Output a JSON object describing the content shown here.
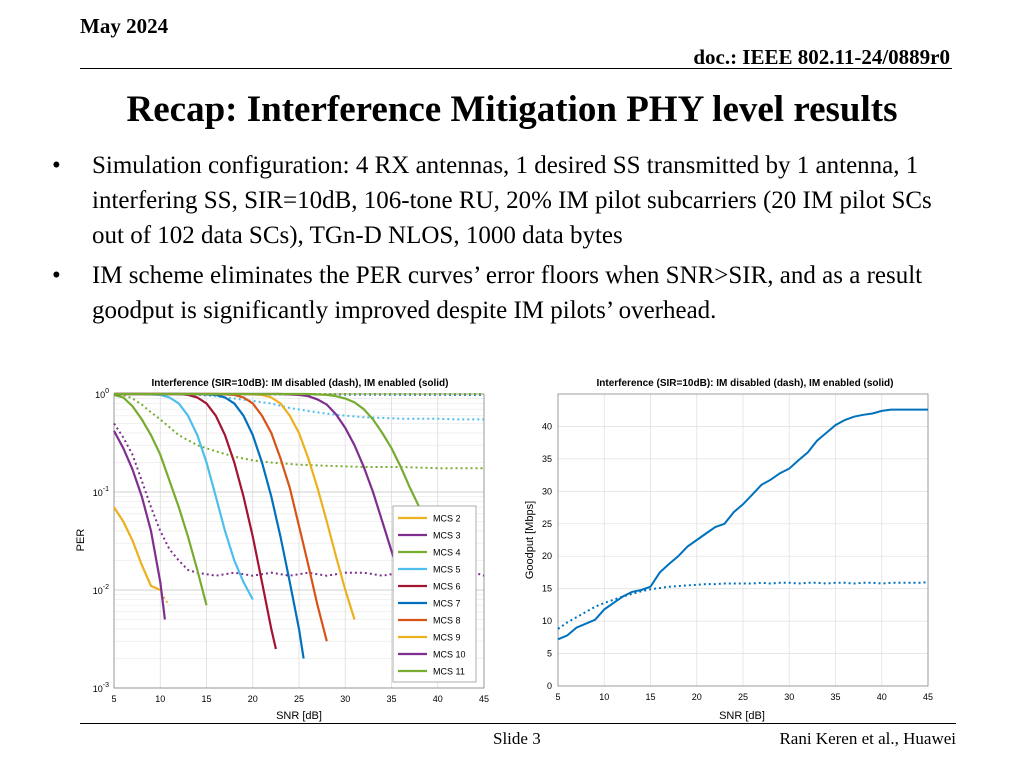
{
  "header": {
    "date": "May 2024",
    "doc": "doc.: IEEE 802.11-24/0889r0"
  },
  "title": "Recap: Interference Mitigation PHY level results",
  "bullets": [
    "Simulation configuration: 4 RX antennas, 1 desired SS transmitted by 1 antenna, 1 interfering SS, SIR=10dB, 106-tone RU, 20% IM pilot subcarriers (20 IM pilot SCs out of 102 data SCs), TGn-D NLOS, 1000 data bytes",
    "IM scheme eliminates the PER curves’ error floors when SNR>SIR, and as a result goodput is significantly improved despite IM pilots’ overhead."
  ],
  "footer": {
    "slide": "Slide 3",
    "author": "Rani Keren et al., Huawei"
  },
  "chart_data": [
    {
      "type": "line",
      "title": "Interference (SIR=10dB): IM disabled (dash), IM enabled (solid)",
      "xlabel": "SNR [dB]",
      "ylabel": "PER",
      "xlim": [
        5,
        45
      ],
      "ylim": [
        0.001,
        1
      ],
      "yscale": "log",
      "grid": true,
      "legend_position": "bottom-right",
      "xticks": [
        "5",
        "10",
        "15",
        "20",
        "25",
        "30",
        "35",
        "40",
        "45"
      ],
      "yticks": [
        {
          "base": "10",
          "exp": "0",
          "value": 1
        },
        {
          "base": "10",
          "exp": "-1",
          "value": 0.1
        },
        {
          "base": "10",
          "exp": "-2",
          "value": 0.01
        },
        {
          "base": "10",
          "exp": "-3",
          "value": 0.001
        }
      ],
      "series": [
        {
          "name": "MCS 2",
          "color": "#EDB120",
          "solid": [
            [
              5,
              0.07
            ],
            [
              6,
              0.05
            ],
            [
              7,
              0.032
            ],
            [
              8,
              0.018
            ],
            [
              9,
              0.011
            ],
            [
              10,
              0.01
            ]
          ],
          "dash": [
            [
              5,
              0.07
            ],
            [
              6,
              0.05
            ],
            [
              7,
              0.032
            ],
            [
              8,
              0.018
            ],
            [
              9,
              0.011
            ],
            [
              10,
              0.01
            ],
            [
              10.5,
              0.008
            ],
            [
              11,
              0.007
            ]
          ]
        },
        {
          "name": "MCS 3",
          "color": "#7E2F8E",
          "solid": [
            [
              5,
              0.42
            ],
            [
              6,
              0.28
            ],
            [
              7,
              0.17
            ],
            [
              8,
              0.09
            ],
            [
              9,
              0.04
            ],
            [
              10,
              0.012
            ],
            [
              10.5,
              0.005
            ]
          ],
          "dash": [
            [
              5,
              0.5
            ],
            [
              6,
              0.36
            ],
            [
              7,
              0.24
            ],
            [
              8,
              0.13
            ],
            [
              9,
              0.07
            ],
            [
              10,
              0.04
            ],
            [
              11,
              0.026
            ],
            [
              12,
              0.02
            ],
            [
              13,
              0.016
            ],
            [
              14,
              0.015
            ],
            [
              16,
              0.014
            ],
            [
              18,
              0.015
            ],
            [
              20,
              0.014
            ],
            [
              22,
              0.015
            ],
            [
              24,
              0.014
            ],
            [
              26,
              0.015
            ],
            [
              28,
              0.014
            ],
            [
              30,
              0.015
            ],
            [
              32,
              0.015
            ],
            [
              34,
              0.014
            ],
            [
              36,
              0.015
            ],
            [
              38,
              0.014
            ],
            [
              40,
              0.015
            ],
            [
              42,
              0.014
            ],
            [
              44,
              0.015
            ],
            [
              45,
              0.014
            ]
          ]
        },
        {
          "name": "MCS 4",
          "color": "#77AC30",
          "solid": [
            [
              5,
              0.98
            ],
            [
              6,
              0.92
            ],
            [
              7,
              0.75
            ],
            [
              8,
              0.55
            ],
            [
              9,
              0.38
            ],
            [
              10,
              0.24
            ],
            [
              11,
              0.13
            ],
            [
              12,
              0.07
            ],
            [
              13,
              0.035
            ],
            [
              14,
              0.016
            ],
            [
              15,
              0.007
            ]
          ],
          "dash": [
            [
              5,
              1
            ],
            [
              6,
              0.98
            ],
            [
              7,
              0.9
            ],
            [
              8,
              0.78
            ],
            [
              9,
              0.65
            ],
            [
              10,
              0.55
            ],
            [
              12,
              0.38
            ],
            [
              14,
              0.3
            ],
            [
              16,
              0.26
            ],
            [
              18,
              0.23
            ],
            [
              20,
              0.21
            ],
            [
              22,
              0.2
            ],
            [
              25,
              0.19
            ],
            [
              28,
              0.185
            ],
            [
              32,
              0.18
            ],
            [
              36,
              0.18
            ],
            [
              40,
              0.175
            ],
            [
              45,
              0.175
            ]
          ]
        },
        {
          "name": "MCS 5",
          "color": "#4DBEEE",
          "solid": [
            [
              5,
              1
            ],
            [
              8,
              1
            ],
            [
              10,
              0.98
            ],
            [
              11,
              0.92
            ],
            [
              12,
              0.8
            ],
            [
              13,
              0.6
            ],
            [
              14,
              0.38
            ],
            [
              15,
              0.2
            ],
            [
              16,
              0.09
            ],
            [
              17,
              0.04
            ],
            [
              18,
              0.02
            ],
            [
              19,
              0.012
            ],
            [
              20,
              0.008
            ]
          ],
          "dash": [
            [
              5,
              1
            ],
            [
              12,
              1
            ],
            [
              14,
              0.98
            ],
            [
              16,
              0.95
            ],
            [
              18,
              0.9
            ],
            [
              20,
              0.85
            ],
            [
              22,
              0.8
            ],
            [
              24,
              0.72
            ],
            [
              26,
              0.67
            ],
            [
              28,
              0.63
            ],
            [
              30,
              0.6
            ],
            [
              32,
              0.58
            ],
            [
              34,
              0.57
            ],
            [
              36,
              0.56
            ],
            [
              38,
              0.56
            ],
            [
              40,
              0.56
            ],
            [
              42,
              0.55
            ],
            [
              45,
              0.55
            ]
          ]
        },
        {
          "name": "MCS 6",
          "color": "#A2142F",
          "solid": [
            [
              5,
              1
            ],
            [
              12,
              1
            ],
            [
              13,
              0.98
            ],
            [
              14,
              0.92
            ],
            [
              15,
              0.8
            ],
            [
              16,
              0.6
            ],
            [
              17,
              0.38
            ],
            [
              18,
              0.2
            ],
            [
              19,
              0.09
            ],
            [
              20,
              0.035
            ],
            [
              21,
              0.012
            ],
            [
              22,
              0.004
            ],
            [
              22.5,
              0.0025
            ]
          ],
          "dash": [
            [
              5,
              1
            ],
            [
              45,
              1
            ]
          ]
        },
        {
          "name": "MCS 7",
          "color": "#0072BD",
          "solid": [
            [
              5,
              1
            ],
            [
              14,
              1
            ],
            [
              16,
              0.98
            ],
            [
              17,
              0.92
            ],
            [
              18,
              0.8
            ],
            [
              19,
              0.6
            ],
            [
              20,
              0.38
            ],
            [
              21,
              0.2
            ],
            [
              22,
              0.09
            ],
            [
              23,
              0.035
            ],
            [
              24,
              0.012
            ],
            [
              25,
              0.004
            ],
            [
              25.5,
              0.002
            ]
          ],
          "dash": [
            [
              5,
              1
            ],
            [
              45,
              0.98
            ]
          ]
        },
        {
          "name": "MCS 8",
          "color": "#D95319",
          "solid": [
            [
              5,
              1
            ],
            [
              16,
              1
            ],
            [
              18,
              0.98
            ],
            [
              19,
              0.92
            ],
            [
              20,
              0.8
            ],
            [
              21,
              0.6
            ],
            [
              22,
              0.4
            ],
            [
              23,
              0.22
            ],
            [
              24,
              0.11
            ],
            [
              25,
              0.045
            ],
            [
              26,
              0.018
            ],
            [
              27,
              0.007
            ],
            [
              28,
              0.003
            ]
          ],
          "dash": [
            [
              5,
              1
            ],
            [
              45,
              1
            ]
          ]
        },
        {
          "name": "MCS 9",
          "color": "#EDB120",
          "solid": [
            [
              5,
              1
            ],
            [
              19,
              1
            ],
            [
              21,
              0.98
            ],
            [
              22,
              0.92
            ],
            [
              23,
              0.8
            ],
            [
              24,
              0.6
            ],
            [
              25,
              0.4
            ],
            [
              26,
              0.22
            ],
            [
              27,
              0.11
            ],
            [
              28,
              0.05
            ],
            [
              29,
              0.022
            ],
            [
              30,
              0.01
            ],
            [
              31,
              0.005
            ]
          ],
          "dash": [
            [
              5,
              1
            ],
            [
              45,
              1
            ]
          ]
        },
        {
          "name": "MCS 10",
          "color": "#7E2F8E",
          "solid": [
            [
              5,
              1
            ],
            [
              23,
              1
            ],
            [
              25,
              0.98
            ],
            [
              26,
              0.95
            ],
            [
              27,
              0.88
            ],
            [
              28,
              0.78
            ],
            [
              29,
              0.62
            ],
            [
              30,
              0.45
            ],
            [
              31,
              0.3
            ],
            [
              32,
              0.18
            ],
            [
              33,
              0.1
            ],
            [
              34,
              0.05
            ],
            [
              35,
              0.025
            ],
            [
              36,
              0.013
            ]
          ],
          "dash": [
            [
              5,
              1
            ],
            [
              45,
              1
            ]
          ]
        },
        {
          "name": "MCS 11",
          "color": "#77AC30",
          "solid": [
            [
              5,
              1
            ],
            [
              26,
              1
            ],
            [
              28,
              0.98
            ],
            [
              29,
              0.95
            ],
            [
              30,
              0.9
            ],
            [
              31,
              0.82
            ],
            [
              32,
              0.7
            ],
            [
              33,
              0.55
            ],
            [
              34,
              0.4
            ],
            [
              35,
              0.28
            ],
            [
              36,
              0.18
            ],
            [
              37,
              0.11
            ],
            [
              38,
              0.07
            ],
            [
              39,
              0.045
            ],
            [
              40,
              0.03
            ],
            [
              40.5,
              0.025
            ]
          ],
          "dash": [
            [
              5,
              1
            ],
            [
              45,
              1
            ]
          ]
        }
      ]
    },
    {
      "type": "line",
      "title": "Interference (SIR=10dB): IM disabled (dash), IM enabled (solid)",
      "xlabel": "SNR [dB]",
      "ylabel": "Goodput [Mbps]",
      "xlim": [
        5,
        45
      ],
      "ylim": [
        0,
        45
      ],
      "grid": true,
      "xticks": [
        "5",
        "10",
        "15",
        "20",
        "25",
        "30",
        "35",
        "40",
        "45"
      ],
      "yticks": [
        "0",
        "5",
        "10",
        "15",
        "20",
        "25",
        "30",
        "35",
        "40"
      ],
      "series": [
        {
          "name": "IM enabled",
          "style": "solid",
          "color": "#0072BD",
          "x": [
            5,
            6,
            7,
            8,
            9,
            10,
            11,
            12,
            13,
            14,
            15,
            16,
            17,
            18,
            19,
            20,
            21,
            22,
            23,
            24,
            25,
            26,
            27,
            28,
            29,
            30,
            31,
            32,
            33,
            34,
            35,
            36,
            37,
            38,
            39,
            40,
            41,
            42,
            43,
            44,
            45
          ],
          "y": [
            7.2,
            7.8,
            9.0,
            9.6,
            10.2,
            11.8,
            12.8,
            13.8,
            14.5,
            14.8,
            15.3,
            17.5,
            18.8,
            20.0,
            21.5,
            22.5,
            23.5,
            24.5,
            25.0,
            26.8,
            28.0,
            29.5,
            31.0,
            31.8,
            32.8,
            33.5,
            34.8,
            36.0,
            37.8,
            39.0,
            40.2,
            41.0,
            41.5,
            41.8,
            42.0,
            42.4,
            42.6,
            42.6,
            42.6,
            42.6,
            42.6
          ]
        },
        {
          "name": "IM disabled",
          "style": "dash",
          "color": "#0072BD",
          "x": [
            5,
            6,
            7,
            8,
            9,
            10,
            11,
            12,
            13,
            14,
            15,
            16,
            17,
            18,
            19,
            20,
            21,
            22,
            23,
            24,
            25,
            26,
            27,
            28,
            29,
            30,
            31,
            32,
            33,
            34,
            35,
            36,
            37,
            38,
            39,
            40,
            41,
            42,
            43,
            44,
            45
          ],
          "y": [
            8.8,
            9.8,
            10.6,
            11.4,
            12.2,
            12.8,
            13.3,
            13.8,
            14.2,
            14.6,
            14.9,
            15.1,
            15.3,
            15.4,
            15.5,
            15.6,
            15.7,
            15.7,
            15.8,
            15.8,
            15.8,
            15.8,
            15.9,
            15.8,
            15.9,
            15.9,
            15.8,
            15.9,
            15.9,
            15.8,
            15.9,
            15.9,
            15.8,
            15.9,
            15.9,
            15.8,
            15.9,
            15.9,
            15.9,
            15.9,
            16.0
          ]
        }
      ]
    }
  ]
}
